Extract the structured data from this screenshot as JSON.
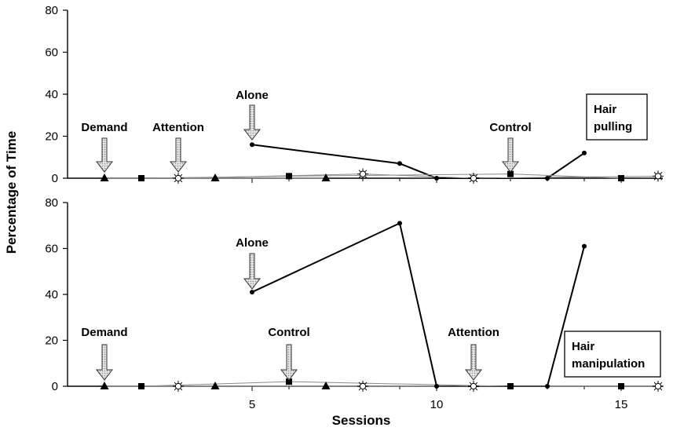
{
  "chart_data": [
    {
      "type": "line",
      "panel": "top",
      "ylabel": "Percentage of Time",
      "xlabel": "",
      "ylim": [
        0,
        80
      ],
      "xlim": [
        0,
        16
      ],
      "yticks": [
        0,
        20,
        40,
        60,
        80
      ],
      "box_label": [
        "Hair",
        "pulling"
      ],
      "series": [
        {
          "condition": "alone",
          "marker": "circle",
          "x": [
            5,
            9,
            10,
            13,
            14
          ],
          "y": [
            16,
            7,
            0,
            0,
            12
          ]
        },
        {
          "condition": "demand",
          "marker": "triangle",
          "x": [
            1,
            4,
            7
          ],
          "y": [
            0,
            0,
            0
          ]
        },
        {
          "condition": "attention",
          "marker": "sun",
          "x": [
            3,
            8,
            11,
            16
          ],
          "y": [
            0,
            2,
            0,
            1
          ]
        },
        {
          "condition": "control",
          "marker": "square",
          "x": [
            2,
            6,
            12,
            15
          ],
          "y": [
            0,
            1,
            2,
            0
          ]
        }
      ],
      "annotations": [
        {
          "text": "Demand",
          "x": 1
        },
        {
          "text": "Attention",
          "x": 3
        },
        {
          "text": "Alone",
          "x": 5
        },
        {
          "text": "Control",
          "x": 12
        }
      ]
    },
    {
      "type": "line",
      "panel": "bottom",
      "ylabel": "Percentage of Time",
      "xlabel": "Sessions",
      "ylim": [
        0,
        80
      ],
      "xlim": [
        0,
        16
      ],
      "yticks": [
        0,
        20,
        40,
        60,
        80
      ],
      "xticks": [
        5,
        10,
        15
      ],
      "box_label": [
        "Hair",
        "manipulation"
      ],
      "series": [
        {
          "condition": "alone",
          "marker": "circle",
          "x": [
            5,
            9,
            10,
            13,
            14
          ],
          "y": [
            41,
            71,
            0,
            0,
            61
          ]
        },
        {
          "condition": "demand",
          "marker": "triangle",
          "x": [
            1,
            4,
            7
          ],
          "y": [
            0,
            0,
            0
          ]
        },
        {
          "condition": "attention",
          "marker": "sun",
          "x": [
            3,
            8,
            11,
            16
          ],
          "y": [
            0,
            0,
            0,
            0
          ]
        },
        {
          "condition": "control",
          "marker": "square",
          "x": [
            2,
            6,
            12,
            15
          ],
          "y": [
            0,
            2,
            0,
            0
          ]
        }
      ],
      "annotations": [
        {
          "text": "Demand",
          "x": 1
        },
        {
          "text": "Alone",
          "x": 5
        },
        {
          "text": "Control",
          "x": 6
        },
        {
          "text": "Attention",
          "x": 11
        }
      ]
    }
  ]
}
